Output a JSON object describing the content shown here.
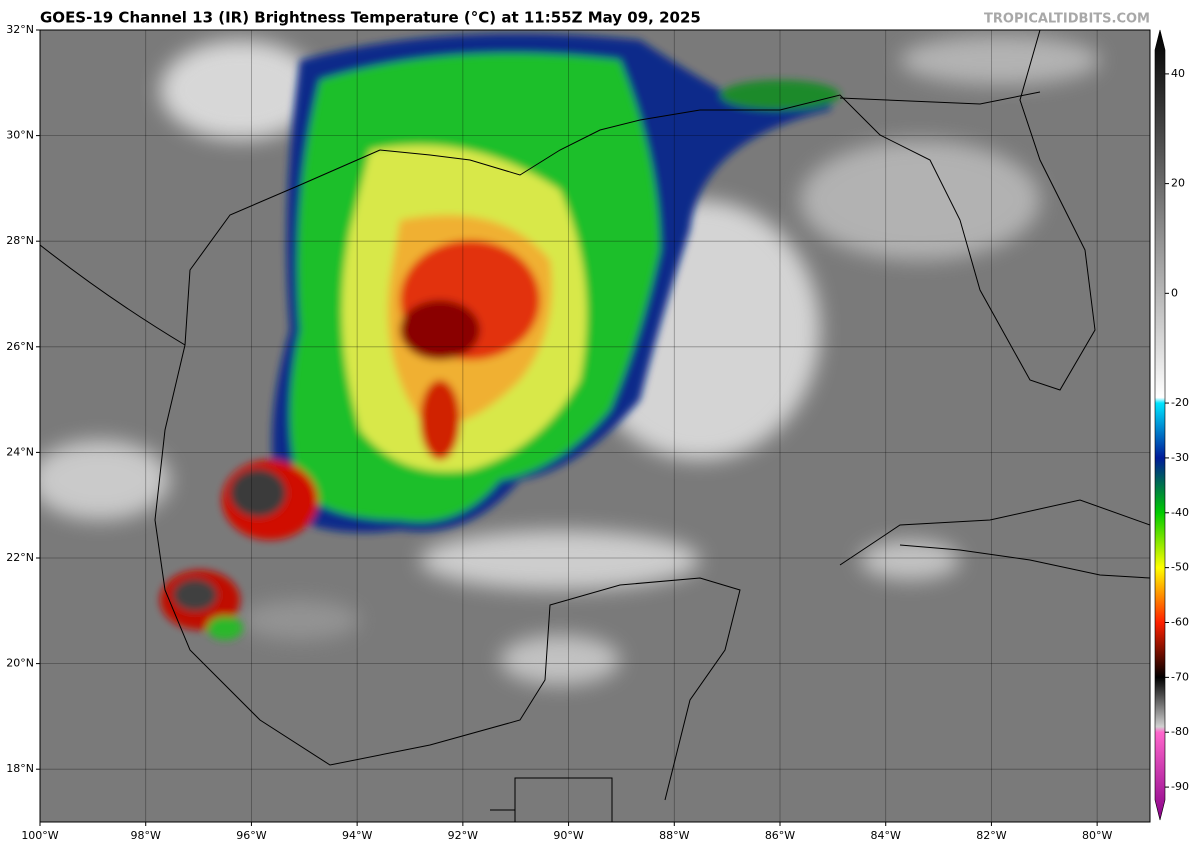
{
  "header": {
    "title": "GOES-19 Channel 13 (IR) Brightness Temperature (°C) at 11:55Z May 09, 2025",
    "watermark": "TROPICALTIDBITS.COM"
  },
  "map": {
    "ylim": [
      17,
      32
    ],
    "xlim": [
      -100,
      -79
    ],
    "lat_ticks": [
      {
        "value": 32,
        "label": "32°N"
      },
      {
        "value": 30,
        "label": "30°N"
      },
      {
        "value": 28,
        "label": "28°N"
      },
      {
        "value": 26,
        "label": "26°N"
      },
      {
        "value": 24,
        "label": "24°N"
      },
      {
        "value": 22,
        "label": "22°N"
      },
      {
        "value": 20,
        "label": "20°N"
      },
      {
        "value": 18,
        "label": "18°N"
      }
    ],
    "lon_ticks": [
      {
        "value": -100,
        "label": "100°W"
      },
      {
        "value": -98,
        "label": "98°W"
      },
      {
        "value": -96,
        "label": "96°W"
      },
      {
        "value": -94,
        "label": "94°W"
      },
      {
        "value": -92,
        "label": "92°W"
      },
      {
        "value": -90,
        "label": "90°W"
      },
      {
        "value": -88,
        "label": "88°W"
      },
      {
        "value": -86,
        "label": "86°W"
      },
      {
        "value": -84,
        "label": "84°W"
      },
      {
        "value": -82,
        "label": "82°W"
      },
      {
        "value": -80,
        "label": "80°W"
      }
    ],
    "grid": true
  },
  "colorbar": {
    "lim": [
      -96,
      48
    ],
    "ticks": [
      40,
      20,
      0,
      -20,
      -30,
      -40,
      -50,
      -60,
      -70,
      -80,
      -90
    ],
    "stops": [
      {
        "value": 48,
        "color": "#000000"
      },
      {
        "value": -19,
        "color": "#ffffff"
      },
      {
        "value": -20,
        "color": "#00e5ff"
      },
      {
        "value": -30,
        "color": "#001a99"
      },
      {
        "value": -40,
        "color": "#00cc00"
      },
      {
        "value": -50,
        "color": "#ffff00"
      },
      {
        "value": -60,
        "color": "#ff2000"
      },
      {
        "value": -70,
        "color": "#000000"
      },
      {
        "value": -79,
        "color": "#d0d0d0"
      },
      {
        "value": -80,
        "color": "#ff66cc"
      },
      {
        "value": -96,
        "color": "#880088"
      }
    ]
  }
}
